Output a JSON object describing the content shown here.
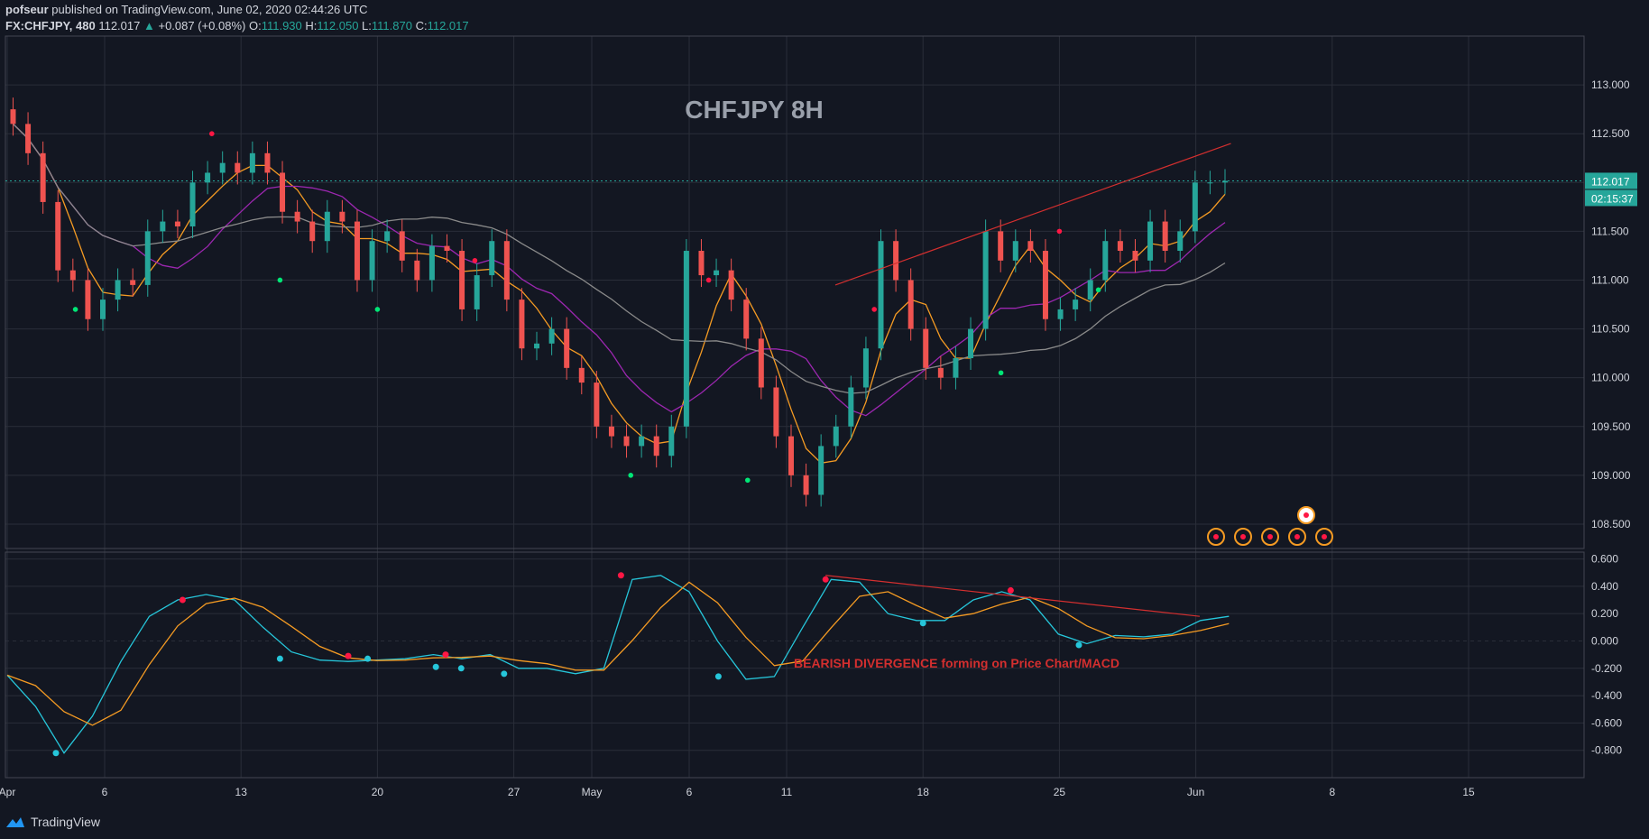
{
  "header": {
    "author": "pofseur",
    "published_text": "published on TradingView.com, June 02, 2020 02:44:26 UTC",
    "symbol": "FX:CHFJPY, 480",
    "last": "112.017",
    "change_arrow": "▲",
    "change": "+0.087 (+0.08%)",
    "open_label": "O:",
    "open": "111.930",
    "high_label": "H:",
    "high": "112.050",
    "low_label": "L:",
    "low": "111.870",
    "close_label": "C:",
    "close": "112.017"
  },
  "price_badge": "112.017",
  "timer_badge": "02:15:37",
  "footer_brand": "TradingView",
  "colors": {
    "background": "#131722",
    "grid": "#2a2e39",
    "up": "#26a69a",
    "down": "#ef5350",
    "ma_fast": "#f59b23",
    "ma_mid": "#9c27b0",
    "ma_slow": "#8a8a8a",
    "macd": "#26c6da",
    "signal": "#f59b23",
    "trend": "#d32f2f",
    "badge": "#26a69a"
  },
  "chart_data": [
    {
      "type": "candlestick",
      "title": "CHFJPY 8H",
      "x_tick_labels": [
        "Apr",
        "6",
        "13",
        "20",
        "27",
        "May",
        "6",
        "11",
        "18",
        "25",
        "Jun",
        "8",
        "15"
      ],
      "y_tick_labels": [
        "113.000",
        "112.500",
        "112.000",
        "111.500",
        "111.000",
        "110.500",
        "110.000",
        "109.500",
        "109.000",
        "108.500"
      ],
      "ylim": [
        108.25,
        113.5
      ],
      "grid": true,
      "trend_line": {
        "from": [
          "2020-05-13",
          110.9
        ],
        "to": [
          "2020-06-02",
          112.4
        ]
      },
      "candles_approx_close": [
        112.6,
        112.3,
        111.8,
        111.1,
        111.0,
        110.6,
        110.8,
        111.0,
        110.95,
        111.5,
        111.6,
        111.55,
        112.0,
        112.1,
        112.2,
        112.1,
        112.3,
        112.1,
        111.7,
        111.6,
        111.4,
        111.7,
        111.6,
        111.0,
        111.4,
        111.5,
        111.2,
        111.0,
        111.35,
        111.3,
        110.7,
        111.05,
        111.4,
        110.8,
        110.3,
        110.35,
        110.5,
        110.1,
        109.95,
        109.5,
        109.4,
        109.3,
        109.4,
        109.2,
        109.5,
        111.3,
        111.05,
        111.1,
        110.8,
        110.4,
        109.9,
        109.4,
        109.0,
        108.8,
        109.3,
        109.5,
        109.9,
        110.3,
        111.4,
        111.0,
        110.5,
        110.1,
        110.0,
        110.2,
        110.5,
        111.5,
        111.2,
        111.4,
        111.3,
        110.6,
        110.7,
        110.8,
        111.0,
        111.4,
        111.3,
        111.2,
        111.6,
        111.3,
        111.5,
        112.0,
        112.0,
        112.017
      ]
    },
    {
      "type": "line",
      "title": "",
      "series": [
        {
          "values": [
            -0.25,
            -0.48,
            -0.82,
            -0.55,
            -0.15,
            0.18,
            0.3,
            0.34,
            0.3,
            0.1,
            -0.08,
            -0.14,
            -0.15,
            -0.14,
            -0.13,
            -0.1,
            -0.13,
            -0.1,
            -0.2,
            -0.2,
            -0.24,
            -0.2,
            0.45,
            0.48,
            0.36,
            0.0,
            -0.28,
            -0.26,
            0.1,
            0.45,
            0.43,
            0.2,
            0.15,
            0.15,
            0.3,
            0.36,
            0.3,
            0.05,
            -0.02,
            0.04,
            0.03,
            0.05,
            0.15,
            0.18
          ]
        }
      ],
      "y_tick_labels": [
        "0.600",
        "0.400",
        "0.200",
        "0.000",
        "-0.200",
        "-0.400",
        "-0.600",
        "-0.800"
      ],
      "ylim": [
        -1.0,
        0.65
      ],
      "annotation": "BEARISH DIVERGENCE forming on Price Chart/MACD"
    }
  ]
}
